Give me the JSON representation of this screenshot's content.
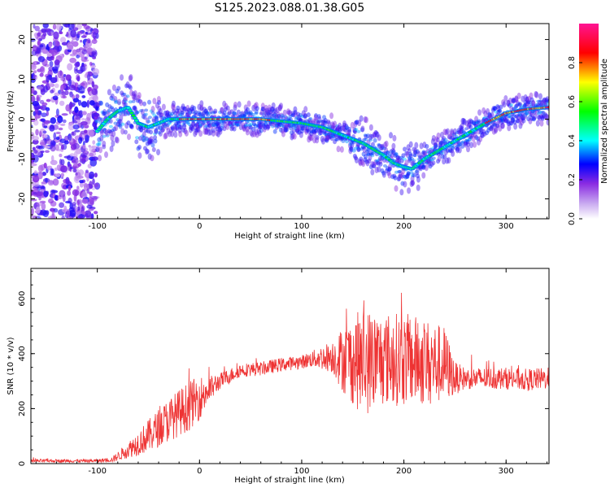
{
  "figure_title": "S125.2023.088.01.38.G05",
  "chart_data": [
    {
      "type": "heatmap",
      "title": "",
      "xlabel": "Height of straight line (km)",
      "ylabel": "Frequency (Hz)",
      "xlim": [
        -165,
        342
      ],
      "ylim": [
        -25,
        24
      ],
      "xticks": [
        -100,
        0,
        100,
        200,
        300
      ],
      "yticks": [
        -20,
        -10,
        0,
        10,
        20
      ],
      "colorbar": {
        "label": "Normalized spectral amplitude",
        "range": [
          0,
          1
        ],
        "ticks": [
          0.0,
          0.2,
          0.4,
          0.6,
          0.8
        ],
        "colormap": [
          "#ffffff",
          "#8a2be2",
          "#0000ff",
          "#00ffff",
          "#00ff00",
          "#ffff00",
          "#ff0000",
          "#ff1493"
        ]
      },
      "ridge": {
        "x": [
          -100,
          -90,
          -80,
          -70,
          -60,
          -50,
          -40,
          -30,
          -20,
          -10,
          0,
          20,
          40,
          60,
          80,
          100,
          120,
          140,
          160,
          180,
          190,
          200,
          208,
          220,
          240,
          260,
          280,
          300,
          320,
          342
        ],
        "y": [
          -3,
          0,
          2,
          3,
          -1,
          -2,
          -1,
          0,
          0,
          0,
          0,
          0,
          0,
          0,
          -0.5,
          -1,
          -2,
          -4,
          -6,
          -9,
          -11,
          -12,
          -12.5,
          -10,
          -7,
          -4,
          -1,
          1.5,
          2.5,
          3
        ]
      },
      "grid": false
    },
    {
      "type": "line",
      "title": "",
      "xlabel": "Height of straight line (km)",
      "ylabel": "SNR (10 * v/v)",
      "xlim": [
        -165,
        342
      ],
      "ylim": [
        0,
        710
      ],
      "xticks": [
        -100,
        0,
        100,
        200,
        300
      ],
      "yticks": [
        0,
        200,
        400,
        600
      ],
      "color": "#ee3333",
      "envelope": {
        "x": [
          -165,
          -100,
          -85,
          -70,
          -50,
          -30,
          -10,
          0,
          10,
          20,
          40,
          60,
          80,
          100,
          110,
          130,
          140,
          160,
          180,
          200,
          220,
          240,
          250,
          260,
          280,
          300,
          320,
          342
        ],
        "mean": [
          10,
          10,
          15,
          50,
          100,
          160,
          210,
          240,
          270,
          300,
          340,
          345,
          360,
          370,
          380,
          390,
          380,
          370,
          380,
          380,
          370,
          360,
          310,
          310,
          310,
          310,
          305,
          310
        ],
        "spread": [
          6,
          6,
          10,
          30,
          60,
          80,
          90,
          80,
          50,
          30,
          25,
          25,
          25,
          25,
          30,
          60,
          120,
          200,
          170,
          170,
          160,
          140,
          60,
          40,
          40,
          40,
          40,
          40
        ]
      },
      "grid": false
    }
  ]
}
